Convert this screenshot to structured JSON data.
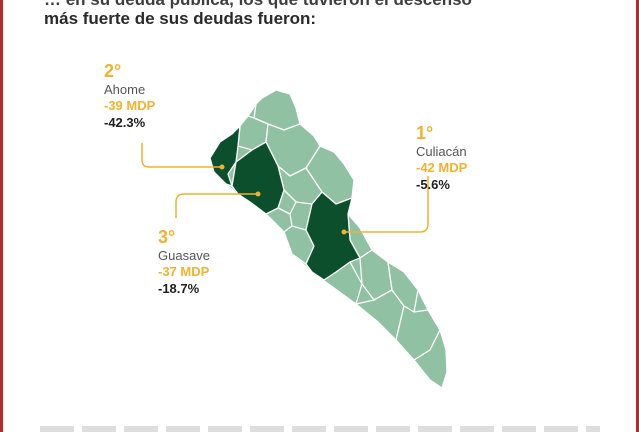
{
  "headline": {
    "line1": "… en su deuda pública, los que tuvieron el descenso",
    "line2": "más fuerte de sus deudas fueron:"
  },
  "colors": {
    "accent": "#f2b22e",
    "highlight": "#0b4f2c",
    "base": "#8fc1a2",
    "border": "#ffffff",
    "frame": "#b52a2a"
  },
  "municipalities": [
    {
      "rank": "2°",
      "name": "Ahome",
      "amount": "-39 MDP",
      "change": "-42.3%"
    },
    {
      "rank": "1°",
      "name": "Culiacán",
      "amount": "-42 MDP",
      "change": "-5.6%"
    },
    {
      "rank": "3°",
      "name": "Guasave",
      "amount": "-37 MDP",
      "change": "-18.7%"
    }
  ]
}
